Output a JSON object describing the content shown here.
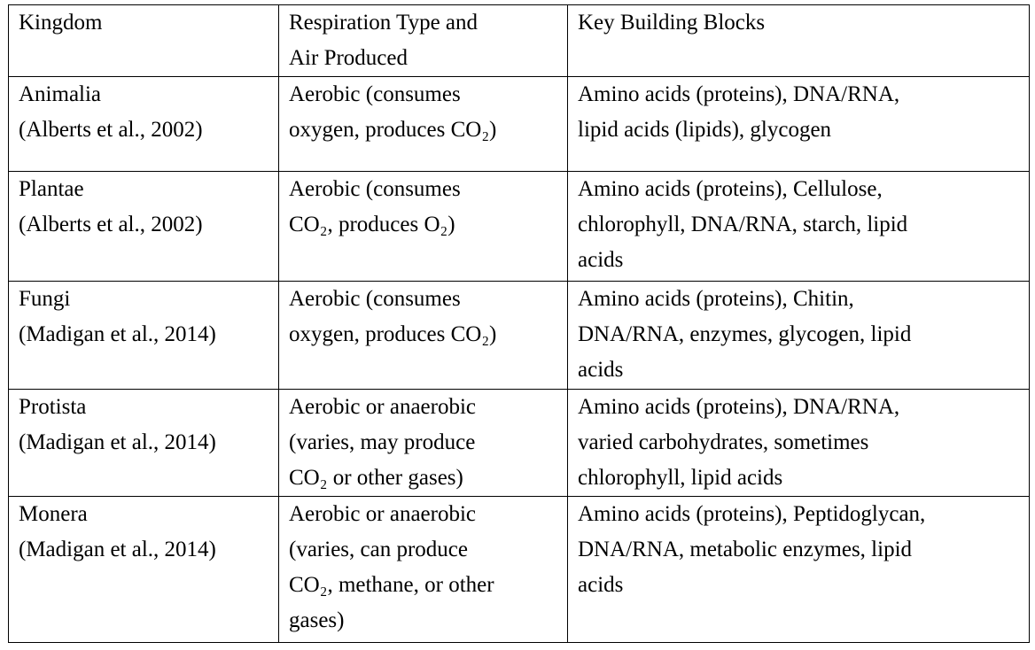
{
  "table": {
    "headers": [
      [
        "Kingdom"
      ],
      [
        "Respiration Type and",
        "Air Produced"
      ],
      [
        "Key Building Blocks"
      ]
    ],
    "rows": [
      {
        "kingdom": [
          "Animalia",
          "(Alberts et al., 2002)"
        ],
        "respiration": [
          "Aerobic (consumes",
          "oxygen, produces CO₂)"
        ],
        "blocks": [
          "Amino acids (proteins), DNA/RNA,",
          "lipid acids (lipids), glycogen"
        ]
      },
      {
        "kingdom": [
          "Plantae",
          "(Alberts et al., 2002)"
        ],
        "respiration": [
          "Aerobic (consumes",
          "CO₂, produces O₂)"
        ],
        "blocks": [
          "Amino acids (proteins), Cellulose,",
          "chlorophyll, DNA/RNA, starch, lipid",
          "acids"
        ]
      },
      {
        "kingdom": [
          "Fungi",
          "(Madigan et al., 2014)"
        ],
        "respiration": [
          "Aerobic (consumes",
          "oxygen, produces CO₂)"
        ],
        "blocks": [
          "Amino acids (proteins), Chitin,",
          "DNA/RNA, enzymes, glycogen, lipid",
          "acids"
        ]
      },
      {
        "kingdom": [
          "Protista",
          "(Madigan et al., 2014)"
        ],
        "respiration": [
          "Aerobic or anaerobic",
          "(varies, may produce",
          "CO₂ or other gases)"
        ],
        "blocks": [
          "Amino acids (proteins), DNA/RNA,",
          "varied carbohydrates, sometimes",
          "chlorophyll, lipid acids"
        ]
      },
      {
        "kingdom": [
          "Monera",
          "(Madigan et al., 2014)"
        ],
        "respiration": [
          "Aerobic or anaerobic",
          "(varies, can produce",
          "CO₂, methane, or other",
          "gases)"
        ],
        "blocks": [
          "Amino acids (proteins), Peptidoglycan,",
          "DNA/RNA, metabolic enzymes, lipid",
          "acids"
        ]
      }
    ]
  }
}
